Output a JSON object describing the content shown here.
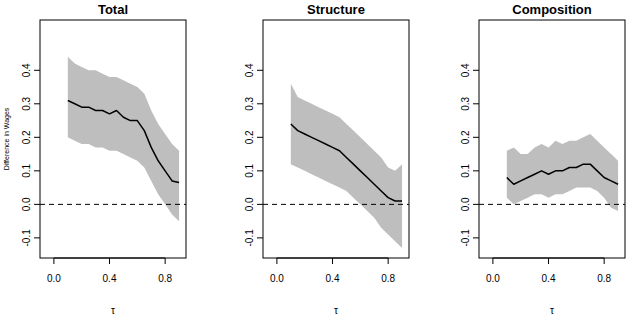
{
  "chart_data": [
    {
      "type": "line",
      "title": "Total",
      "y_label": "Difference in Wages",
      "x_label": "τ",
      "x": [
        0.1,
        0.15,
        0.2,
        0.25,
        0.3,
        0.35,
        0.4,
        0.45,
        0.5,
        0.55,
        0.6,
        0.65,
        0.7,
        0.75,
        0.8,
        0.85,
        0.9
      ],
      "values": [
        0.31,
        0.3,
        0.29,
        0.29,
        0.28,
        0.28,
        0.27,
        0.28,
        0.26,
        0.25,
        0.25,
        0.22,
        0.17,
        0.13,
        0.1,
        0.07,
        0.065
      ],
      "upper": [
        0.44,
        0.42,
        0.41,
        0.4,
        0.4,
        0.39,
        0.38,
        0.38,
        0.37,
        0.36,
        0.35,
        0.33,
        0.28,
        0.24,
        0.21,
        0.18,
        0.16
      ],
      "lower": [
        0.2,
        0.19,
        0.18,
        0.18,
        0.17,
        0.17,
        0.16,
        0.16,
        0.15,
        0.14,
        0.13,
        0.11,
        0.07,
        0.03,
        0.0,
        -0.03,
        -0.05
      ],
      "color": "#000000",
      "hline": 0,
      "xlim": [
        -0.1,
        0.95
      ],
      "xticks": [
        {
          "value": 0,
          "label": "0.0"
        },
        0.4,
        0.8
      ],
      "ylim": [
        -0.16,
        0.55
      ],
      "yticks": [
        -0.1,
        {
          "value": 0,
          "label": "0.0"
        },
        0.1,
        0.2,
        0.3,
        0.4
      ]
    },
    {
      "type": "line",
      "title": "Structure",
      "x_label": "τ",
      "x": [
        0.1,
        0.15,
        0.2,
        0.25,
        0.3,
        0.35,
        0.4,
        0.45,
        0.5,
        0.55,
        0.6,
        0.65,
        0.7,
        0.75,
        0.8,
        0.85,
        0.9
      ],
      "values": [
        0.24,
        0.22,
        0.21,
        0.2,
        0.19,
        0.18,
        0.17,
        0.16,
        0.14,
        0.12,
        0.1,
        0.08,
        0.06,
        0.04,
        0.02,
        0.01,
        0.01
      ],
      "upper": [
        0.36,
        0.32,
        0.31,
        0.3,
        0.29,
        0.28,
        0.27,
        0.26,
        0.24,
        0.22,
        0.2,
        0.18,
        0.16,
        0.14,
        0.11,
        0.1,
        0.12
      ],
      "lower": [
        0.12,
        0.11,
        0.1,
        0.09,
        0.08,
        0.07,
        0.06,
        0.05,
        0.04,
        0.02,
        0.0,
        -0.02,
        -0.04,
        -0.07,
        -0.09,
        -0.11,
        -0.13
      ],
      "color": "#000000",
      "hline": 0,
      "xlim": [
        -0.1,
        0.95
      ],
      "xticks": [
        {
          "value": 0,
          "label": "0.0"
        },
        0.4,
        0.8
      ],
      "ylim": [
        -0.16,
        0.55
      ],
      "yticks": [
        -0.1,
        {
          "value": 0,
          "label": "0.0"
        },
        0.1,
        0.2,
        0.3,
        0.4
      ]
    },
    {
      "type": "line",
      "title": "Composition",
      "x_label": "τ",
      "x": [
        0.1,
        0.15,
        0.2,
        0.25,
        0.3,
        0.35,
        0.4,
        0.45,
        0.5,
        0.55,
        0.6,
        0.65,
        0.7,
        0.75,
        0.8,
        0.85,
        0.9
      ],
      "values": [
        0.08,
        0.06,
        0.07,
        0.08,
        0.09,
        0.1,
        0.09,
        0.1,
        0.1,
        0.11,
        0.11,
        0.12,
        0.12,
        0.1,
        0.08,
        0.07,
        0.06
      ],
      "upper": [
        0.16,
        0.17,
        0.15,
        0.15,
        0.17,
        0.18,
        0.17,
        0.19,
        0.18,
        0.19,
        0.19,
        0.2,
        0.21,
        0.19,
        0.17,
        0.15,
        0.13
      ],
      "lower": [
        0.02,
        0.0,
        0.01,
        0.02,
        0.03,
        0.03,
        0.02,
        0.03,
        0.03,
        0.04,
        0.05,
        0.05,
        0.05,
        0.04,
        0.02,
        -0.01,
        -0.02
      ],
      "color": "#000000",
      "hline": 0,
      "xlim": [
        -0.1,
        0.95
      ],
      "xticks": [
        {
          "value": 0,
          "label": "0.0"
        },
        0.4,
        0.8
      ],
      "ylim": [
        -0.16,
        0.55
      ],
      "yticks": [
        -0.1,
        {
          "value": 0,
          "label": "0.0"
        },
        0.1,
        0.2,
        0.3,
        0.4
      ]
    }
  ]
}
